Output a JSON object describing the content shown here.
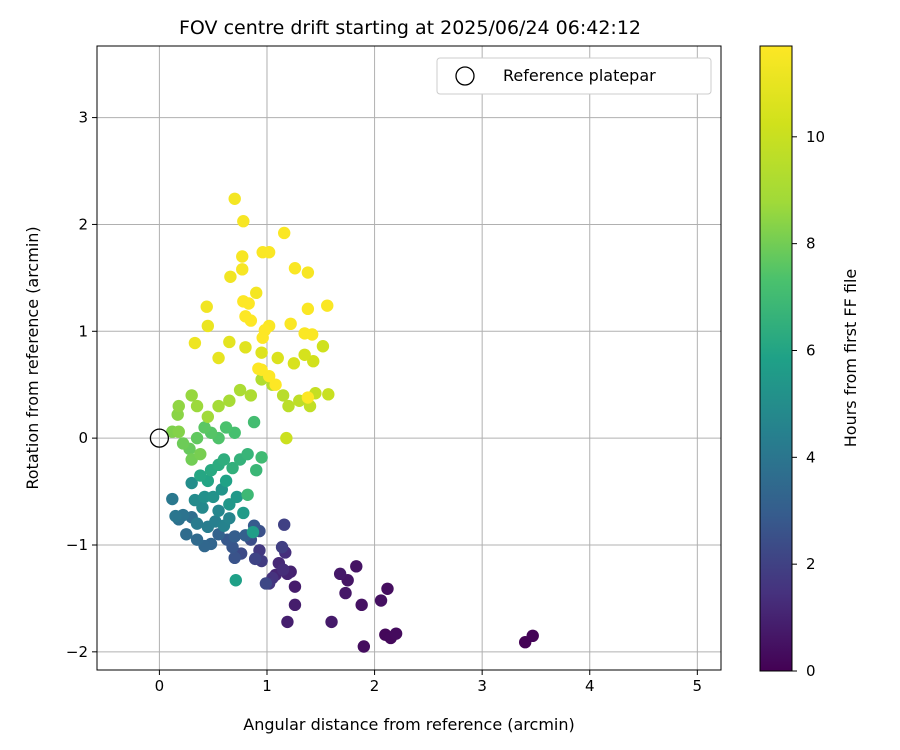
{
  "chart_data": {
    "type": "scatter",
    "title": "FOV centre drift starting at 2025/06/24 06:42:12",
    "xlabel": "Angular distance from reference (arcmin)",
    "ylabel": "Rotation from reference (arcmin)",
    "xlim": [
      -0.58,
      5.22
    ],
    "ylim": [
      -2.17,
      3.67
    ],
    "xticks": [
      0,
      1,
      2,
      3,
      4,
      5
    ],
    "yticks": [
      -2,
      -1,
      0,
      1,
      2,
      3
    ],
    "grid": true,
    "legend": {
      "placement": "top-right",
      "entries": [
        "Reference platepar"
      ]
    },
    "reference": {
      "name": "Reference platepar",
      "x": 0,
      "y": 0
    },
    "colorbar": {
      "label": "Hours from first FF file",
      "min": 0,
      "max": 11.7,
      "ticks": [
        0,
        2,
        4,
        6,
        8,
        10
      ],
      "colormap": "viridis"
    },
    "points": [
      [
        3.4,
        -1.91,
        0.05
      ],
      [
        3.47,
        -1.85,
        0.1
      ],
      [
        2.1,
        -1.84,
        0.2
      ],
      [
        2.15,
        -1.87,
        0.25
      ],
      [
        2.2,
        -1.83,
        0.3
      ],
      [
        1.9,
        -1.95,
        0.35
      ],
      [
        2.12,
        -1.41,
        0.4
      ],
      [
        2.06,
        -1.52,
        0.45
      ],
      [
        1.88,
        -1.56,
        0.5
      ],
      [
        1.83,
        -1.2,
        0.55
      ],
      [
        1.75,
        -1.33,
        0.6
      ],
      [
        1.73,
        -1.45,
        0.65
      ],
      [
        1.68,
        -1.27,
        0.7
      ],
      [
        1.6,
        -1.72,
        0.75
      ],
      [
        1.26,
        -1.39,
        0.8
      ],
      [
        1.26,
        -1.56,
        0.85
      ],
      [
        1.19,
        -1.72,
        0.9
      ],
      [
        1.22,
        -1.25,
        0.95
      ],
      [
        1.19,
        -1.27,
        1.0
      ],
      [
        1.08,
        -1.28,
        1.1
      ],
      [
        1.11,
        -1.17,
        1.2
      ],
      [
        1.15,
        -1.23,
        1.3
      ],
      [
        1.17,
        -1.07,
        1.4
      ],
      [
        1.05,
        -1.31,
        1.5
      ],
      [
        1.02,
        -1.36,
        1.6
      ],
      [
        0.93,
        -1.05,
        1.7
      ],
      [
        0.95,
        -1.15,
        1.8
      ],
      [
        1.14,
        -1.02,
        1.9
      ],
      [
        1.16,
        -0.81,
        2.0
      ],
      [
        0.89,
        -1.13,
        2.1
      ],
      [
        0.99,
        -1.36,
        2.2
      ],
      [
        0.76,
        -1.08,
        2.3
      ],
      [
        0.85,
        -0.95,
        2.4
      ],
      [
        0.93,
        -0.87,
        2.5
      ],
      [
        0.7,
        -1.12,
        2.6
      ],
      [
        0.68,
        -1.02,
        2.7
      ],
      [
        0.63,
        -0.95,
        2.8
      ],
      [
        0.88,
        -0.82,
        2.9
      ],
      [
        0.7,
        -0.92,
        3.0
      ],
      [
        0.8,
        -0.91,
        3.1
      ],
      [
        0.55,
        -0.9,
        3.2
      ],
      [
        0.48,
        -0.99,
        3.3
      ],
      [
        0.42,
        -1.01,
        3.4
      ],
      [
        0.35,
        -0.95,
        3.5
      ],
      [
        0.25,
        -0.9,
        3.6
      ],
      [
        0.3,
        -0.74,
        3.7
      ],
      [
        0.18,
        -0.76,
        3.8
      ],
      [
        0.22,
        -0.72,
        3.9
      ],
      [
        0.15,
        -0.73,
        4.0
      ],
      [
        0.12,
        -0.57,
        4.1
      ],
      [
        0.35,
        -0.8,
        4.2
      ],
      [
        0.45,
        -0.83,
        4.3
      ],
      [
        0.52,
        -0.78,
        4.4
      ],
      [
        0.6,
        -0.82,
        4.5
      ],
      [
        0.65,
        -0.75,
        4.6
      ],
      [
        0.55,
        -0.68,
        4.7
      ],
      [
        0.4,
        -0.65,
        4.8
      ],
      [
        0.33,
        -0.58,
        4.9
      ],
      [
        0.3,
        -0.42,
        5.0
      ],
      [
        0.42,
        -0.55,
        5.1
      ],
      [
        0.5,
        -0.55,
        5.2
      ],
      [
        0.58,
        -0.48,
        5.3
      ],
      [
        0.65,
        -0.62,
        5.4
      ],
      [
        0.72,
        -0.55,
        5.5
      ],
      [
        0.78,
        -0.7,
        5.6
      ],
      [
        0.87,
        -0.88,
        5.7
      ],
      [
        0.71,
        -1.33,
        5.8
      ],
      [
        0.62,
        -0.4,
        5.9
      ],
      [
        0.45,
        -0.4,
        6.0
      ],
      [
        0.38,
        -0.35,
        6.1
      ],
      [
        0.48,
        -0.3,
        6.2
      ],
      [
        0.55,
        -0.25,
        6.3
      ],
      [
        0.6,
        -0.2,
        6.4
      ],
      [
        0.68,
        -0.28,
        6.5
      ],
      [
        0.75,
        -0.2,
        6.6
      ],
      [
        0.82,
        -0.15,
        6.7
      ],
      [
        0.9,
        -0.3,
        6.8
      ],
      [
        0.82,
        -0.53,
        6.9
      ],
      [
        0.95,
        -0.18,
        7.0
      ],
      [
        0.88,
        0.15,
        7.1
      ],
      [
        0.7,
        0.05,
        7.2
      ],
      [
        0.62,
        0.1,
        7.3
      ],
      [
        0.55,
        0.0,
        7.4
      ],
      [
        0.48,
        0.05,
        7.5
      ],
      [
        0.42,
        0.1,
        7.6
      ],
      [
        0.35,
        0.0,
        7.7
      ],
      [
        0.28,
        -0.1,
        7.8
      ],
      [
        0.22,
        -0.05,
        7.9
      ],
      [
        0.3,
        -0.2,
        8.0
      ],
      [
        0.38,
        -0.15,
        8.1
      ],
      [
        0.12,
        0.06,
        8.2
      ],
      [
        0.18,
        0.06,
        8.3
      ],
      [
        0.17,
        0.22,
        8.4
      ],
      [
        0.18,
        0.3,
        8.5
      ],
      [
        0.3,
        0.4,
        8.6
      ],
      [
        0.35,
        0.3,
        8.7
      ],
      [
        0.45,
        0.2,
        8.8
      ],
      [
        0.55,
        0.3,
        8.9
      ],
      [
        0.65,
        0.35,
        9.0
      ],
      [
        0.75,
        0.45,
        9.1
      ],
      [
        0.85,
        0.4,
        9.2
      ],
      [
        0.95,
        0.55,
        9.3
      ],
      [
        1.05,
        0.5,
        9.4
      ],
      [
        1.15,
        0.4,
        9.5
      ],
      [
        1.2,
        0.3,
        9.6
      ],
      [
        1.3,
        0.35,
        9.7
      ],
      [
        1.4,
        0.3,
        9.8
      ],
      [
        1.45,
        0.42,
        9.9
      ],
      [
        1.57,
        0.41,
        10.0
      ],
      [
        1.18,
        0.0,
        10.1
      ],
      [
        1.52,
        0.86,
        10.2
      ],
      [
        1.43,
        0.72,
        10.3
      ],
      [
        1.35,
        0.78,
        10.4
      ],
      [
        1.25,
        0.7,
        10.5
      ],
      [
        1.1,
        0.75,
        10.6
      ],
      [
        0.95,
        0.8,
        10.7
      ],
      [
        0.8,
        0.85,
        10.8
      ],
      [
        0.65,
        0.9,
        10.9
      ],
      [
        0.55,
        0.75,
        11.0
      ],
      [
        0.45,
        1.05,
        11.1
      ],
      [
        0.33,
        0.89,
        11.2
      ],
      [
        0.44,
        1.23,
        11.3
      ],
      [
        0.66,
        1.51,
        11.3
      ],
      [
        0.9,
        1.36,
        11.4
      ],
      [
        0.7,
        2.24,
        11.4
      ],
      [
        0.78,
        2.03,
        11.5
      ],
      [
        0.77,
        1.7,
        11.5
      ],
      [
        0.77,
        1.58,
        11.5
      ],
      [
        1.38,
        1.55,
        11.5
      ],
      [
        1.26,
        1.59,
        11.6
      ],
      [
        1.16,
        1.92,
        11.6
      ],
      [
        1.02,
        1.74,
        11.6
      ],
      [
        0.96,
        1.74,
        11.6
      ],
      [
        1.56,
        1.24,
        11.6
      ],
      [
        1.38,
        1.21,
        11.6
      ],
      [
        1.22,
        1.07,
        11.6
      ],
      [
        1.35,
        0.98,
        11.6
      ],
      [
        1.42,
        0.97,
        11.6
      ],
      [
        1.02,
        1.05,
        11.6
      ],
      [
        0.98,
        1.01,
        11.7
      ],
      [
        0.85,
        1.1,
        11.7
      ],
      [
        0.8,
        1.14,
        11.7
      ],
      [
        0.78,
        1.28,
        11.7
      ],
      [
        0.83,
        1.26,
        11.7
      ],
      [
        0.96,
        0.94,
        11.7
      ],
      [
        0.92,
        0.65,
        11.7
      ],
      [
        1.02,
        0.58,
        11.7
      ],
      [
        1.08,
        0.5,
        11.7
      ],
      [
        1.38,
        0.38,
        11.7
      ],
      [
        0.95,
        0.64,
        11.7
      ]
    ]
  }
}
